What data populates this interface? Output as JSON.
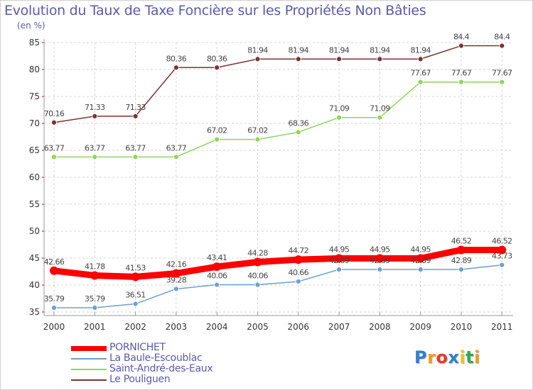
{
  "chart_data": {
    "type": "line",
    "title": "Evolution du Taux de Taxe Foncière sur les Propriétés Non Bâties",
    "ylabel": "(en %)",
    "xlabel": "",
    "x": [
      "2000",
      "2001",
      "2002",
      "2003",
      "2004",
      "2005",
      "2006",
      "2007",
      "2008",
      "2009",
      "2010",
      "2011"
    ],
    "ylim": [
      35,
      85
    ],
    "yticks": [
      35,
      40,
      45,
      50,
      55,
      60,
      65,
      70,
      75,
      80,
      85
    ],
    "grid": true,
    "legend_position": "bottom-left",
    "series": [
      {
        "name": "PORNICHET",
        "color": "#ff0000",
        "values": [
          42.66,
          41.78,
          41.53,
          42.16,
          43.41,
          44.28,
          44.72,
          44.95,
          44.95,
          44.95,
          46.52,
          46.52
        ],
        "labels": [
          "42.66",
          "41.78",
          "41.53",
          "42.16",
          "43.41",
          "44.28",
          "44.72",
          "44.95",
          "44.95",
          "44.95",
          "46.52",
          "46.52"
        ]
      },
      {
        "name": "La Baule-Escoublac",
        "color": "#6d9fd0",
        "values": [
          35.79,
          35.79,
          36.51,
          39.28,
          40.06,
          40.06,
          40.66,
          42.89,
          42.89,
          42.89,
          42.89,
          43.73
        ],
        "labels": [
          "35.79",
          "35.79",
          "36.51",
          "39.28",
          "40.06",
          "40.06",
          "40.66",
          "42.89",
          "42.89",
          "42.89",
          "42.89",
          "43.73"
        ]
      },
      {
        "name": "Saint-André-des-Eaux",
        "color": "#8ed65a",
        "values": [
          63.77,
          63.77,
          63.77,
          63.77,
          67.02,
          67.02,
          68.36,
          71.09,
          71.09,
          77.67,
          77.67,
          77.67
        ],
        "labels": [
          "63.77",
          "63.77",
          "63.77",
          "63.77",
          "67.02",
          "67.02",
          "68.36",
          "71.09",
          "71.09",
          "77.67",
          "77.67",
          "77.67"
        ]
      },
      {
        "name": "Le Pouliguen",
        "color": "#7a3434",
        "values": [
          70.16,
          71.33,
          71.33,
          80.36,
          80.36,
          81.94,
          81.94,
          81.94,
          81.94,
          81.94,
          84.4,
          84.4
        ],
        "labels": [
          "70.16",
          "71.33",
          "71.33",
          "80.36",
          "80.36",
          "81.94",
          "81.94",
          "81.94",
          "81.94",
          "81.94",
          "84.4",
          "84.4"
        ]
      }
    ]
  },
  "logo": {
    "letters": [
      "P",
      "r",
      "o",
      "x",
      "i",
      "t",
      "i"
    ],
    "colors": [
      "#2f7fd1",
      "#f59b1a",
      "#e8392b",
      "#2f7fd1",
      "#f3c21a",
      "#2fa84f",
      "#f59b1a"
    ]
  }
}
